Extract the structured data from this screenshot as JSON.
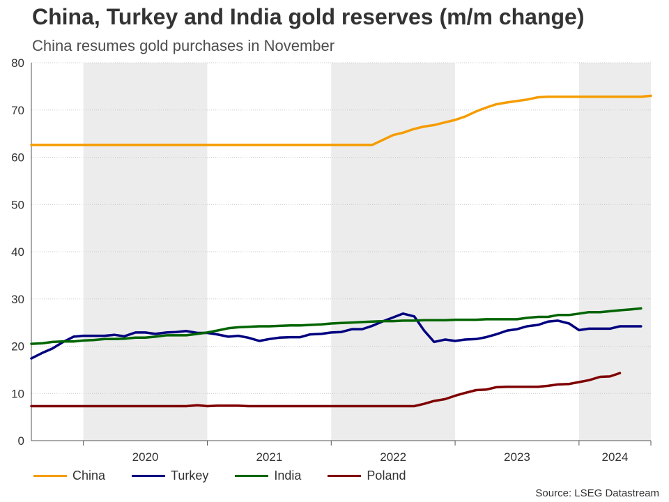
{
  "header": {
    "title": "China, Turkey and India gold reserves (m/m change)",
    "subtitle": "China resumes gold purchases in November"
  },
  "source": "Source: LSEG Datastream",
  "chart_data": {
    "type": "line",
    "title": "China, Turkey and India gold reserves (m/m change)",
    "subtitle": "China resumes gold purchases in November",
    "xlabel": "",
    "ylabel": "",
    "ylim": [
      0,
      80
    ],
    "yticks": [
      0,
      10,
      20,
      30,
      40,
      50,
      60,
      70,
      80
    ],
    "x_start": 2019.58,
    "x_end": 2024.58,
    "categories": [
      "2020",
      "2021",
      "2022",
      "2023",
      "2024"
    ],
    "shaded_years": [
      "2020",
      "2022",
      "2024"
    ],
    "grid": true,
    "legend_position": "bottom-left",
    "series": [
      {
        "name": "China",
        "color": "#f59c00",
        "points": [
          [
            2019.58,
            62.6
          ],
          [
            2022.33,
            62.6
          ],
          [
            2022.5,
            64.7
          ],
          [
            2022.58,
            65.2
          ],
          [
            2022.67,
            66.0
          ],
          [
            2022.75,
            66.5
          ],
          [
            2022.83,
            66.8
          ],
          [
            2022.92,
            67.4
          ],
          [
            2023.0,
            67.9
          ],
          [
            2023.08,
            68.6
          ],
          [
            2023.17,
            69.7
          ],
          [
            2023.25,
            70.5
          ],
          [
            2023.33,
            71.2
          ],
          [
            2023.42,
            71.6
          ],
          [
            2023.5,
            71.9
          ],
          [
            2023.58,
            72.2
          ],
          [
            2023.67,
            72.7
          ],
          [
            2023.75,
            72.8
          ],
          [
            2024.5,
            72.8
          ],
          [
            2024.58,
            73.0
          ]
        ]
      },
      {
        "name": "Turkey",
        "color": "#00007f",
        "points": [
          [
            2019.58,
            17.4
          ],
          [
            2019.67,
            18.6
          ],
          [
            2019.75,
            19.5
          ],
          [
            2019.83,
            20.8
          ],
          [
            2019.92,
            22.0
          ],
          [
            2020.0,
            22.2
          ],
          [
            2020.08,
            22.2
          ],
          [
            2020.17,
            22.2
          ],
          [
            2020.25,
            22.4
          ],
          [
            2020.33,
            22.1
          ],
          [
            2020.42,
            22.9
          ],
          [
            2020.5,
            22.9
          ],
          [
            2020.58,
            22.6
          ],
          [
            2020.67,
            22.9
          ],
          [
            2020.75,
            23.0
          ],
          [
            2020.83,
            23.2
          ],
          [
            2020.92,
            22.8
          ],
          [
            2021.0,
            22.8
          ],
          [
            2021.08,
            22.5
          ],
          [
            2021.17,
            22.0
          ],
          [
            2021.25,
            22.2
          ],
          [
            2021.33,
            21.8
          ],
          [
            2021.42,
            21.1
          ],
          [
            2021.5,
            21.5
          ],
          [
            2021.58,
            21.8
          ],
          [
            2021.67,
            21.9
          ],
          [
            2021.75,
            21.9
          ],
          [
            2021.83,
            22.5
          ],
          [
            2021.92,
            22.6
          ],
          [
            2022.0,
            22.9
          ],
          [
            2022.08,
            23.0
          ],
          [
            2022.17,
            23.6
          ],
          [
            2022.25,
            23.6
          ],
          [
            2022.33,
            24.3
          ],
          [
            2022.42,
            25.3
          ],
          [
            2022.5,
            26.1
          ],
          [
            2022.58,
            26.9
          ],
          [
            2022.67,
            26.3
          ],
          [
            2022.75,
            23.3
          ],
          [
            2022.83,
            20.9
          ],
          [
            2022.92,
            21.4
          ],
          [
            2023.0,
            21.1
          ],
          [
            2023.08,
            21.4
          ],
          [
            2023.17,
            21.5
          ],
          [
            2023.25,
            21.9
          ],
          [
            2023.33,
            22.5
          ],
          [
            2023.42,
            23.3
          ],
          [
            2023.5,
            23.6
          ],
          [
            2023.58,
            24.2
          ],
          [
            2023.67,
            24.5
          ],
          [
            2023.75,
            25.2
          ],
          [
            2023.83,
            25.4
          ],
          [
            2023.92,
            24.8
          ],
          [
            2024.0,
            23.4
          ],
          [
            2024.08,
            23.7
          ],
          [
            2024.17,
            23.7
          ],
          [
            2024.25,
            23.7
          ],
          [
            2024.33,
            24.2
          ],
          [
            2024.42,
            24.2
          ],
          [
            2024.5,
            24.2
          ]
        ]
      },
      {
        "name": "India",
        "color": "#006400",
        "points": [
          [
            2019.58,
            20.5
          ],
          [
            2019.67,
            20.6
          ],
          [
            2019.75,
            20.9
          ],
          [
            2019.83,
            21.0
          ],
          [
            2019.92,
            21.0
          ],
          [
            2020.0,
            21.2
          ],
          [
            2020.08,
            21.3
          ],
          [
            2020.17,
            21.5
          ],
          [
            2020.25,
            21.5
          ],
          [
            2020.33,
            21.6
          ],
          [
            2020.42,
            21.8
          ],
          [
            2020.5,
            21.8
          ],
          [
            2020.58,
            22.0
          ],
          [
            2020.67,
            22.3
          ],
          [
            2020.75,
            22.3
          ],
          [
            2020.83,
            22.3
          ],
          [
            2020.92,
            22.6
          ],
          [
            2021.0,
            22.9
          ],
          [
            2021.08,
            23.3
          ],
          [
            2021.17,
            23.8
          ],
          [
            2021.25,
            24.0
          ],
          [
            2021.33,
            24.1
          ],
          [
            2021.42,
            24.2
          ],
          [
            2021.5,
            24.2
          ],
          [
            2021.58,
            24.3
          ],
          [
            2021.67,
            24.4
          ],
          [
            2021.75,
            24.4
          ],
          [
            2021.83,
            24.5
          ],
          [
            2021.92,
            24.6
          ],
          [
            2022.0,
            24.8
          ],
          [
            2022.08,
            24.9
          ],
          [
            2022.17,
            25.0
          ],
          [
            2022.25,
            25.1
          ],
          [
            2022.33,
            25.2
          ],
          [
            2022.42,
            25.3
          ],
          [
            2022.5,
            25.3
          ],
          [
            2022.58,
            25.4
          ],
          [
            2022.67,
            25.4
          ],
          [
            2022.75,
            25.5
          ],
          [
            2022.83,
            25.5
          ],
          [
            2022.92,
            25.5
          ],
          [
            2023.0,
            25.6
          ],
          [
            2023.08,
            25.6
          ],
          [
            2023.17,
            25.6
          ],
          [
            2023.25,
            25.7
          ],
          [
            2023.33,
            25.7
          ],
          [
            2023.42,
            25.7
          ],
          [
            2023.5,
            25.7
          ],
          [
            2023.58,
            26.0
          ],
          [
            2023.67,
            26.2
          ],
          [
            2023.75,
            26.2
          ],
          [
            2023.83,
            26.6
          ],
          [
            2023.92,
            26.6
          ],
          [
            2024.0,
            26.9
          ],
          [
            2024.08,
            27.2
          ],
          [
            2024.17,
            27.2
          ],
          [
            2024.25,
            27.4
          ],
          [
            2024.33,
            27.6
          ],
          [
            2024.42,
            27.8
          ],
          [
            2024.5,
            28.0
          ]
        ]
      },
      {
        "name": "Poland",
        "color": "#7f0000",
        "points": [
          [
            2019.58,
            7.3
          ],
          [
            2020.83,
            7.3
          ],
          [
            2020.92,
            7.5
          ],
          [
            2021.0,
            7.3
          ],
          [
            2021.08,
            7.4
          ],
          [
            2021.17,
            7.4
          ],
          [
            2021.25,
            7.4
          ],
          [
            2021.33,
            7.3
          ],
          [
            2021.42,
            7.3
          ],
          [
            2022.67,
            7.3
          ],
          [
            2022.75,
            7.8
          ],
          [
            2022.83,
            8.4
          ],
          [
            2022.92,
            8.8
          ],
          [
            2023.0,
            9.5
          ],
          [
            2023.08,
            10.1
          ],
          [
            2023.17,
            10.7
          ],
          [
            2023.25,
            10.8
          ],
          [
            2023.33,
            11.3
          ],
          [
            2023.42,
            11.4
          ],
          [
            2023.5,
            11.4
          ],
          [
            2023.58,
            11.4
          ],
          [
            2023.67,
            11.4
          ],
          [
            2023.75,
            11.6
          ],
          [
            2023.83,
            11.9
          ],
          [
            2023.92,
            12.0
          ],
          [
            2024.0,
            12.4
          ],
          [
            2024.08,
            12.8
          ],
          [
            2024.17,
            13.5
          ],
          [
            2024.25,
            13.6
          ],
          [
            2024.33,
            14.3
          ]
        ]
      }
    ]
  }
}
